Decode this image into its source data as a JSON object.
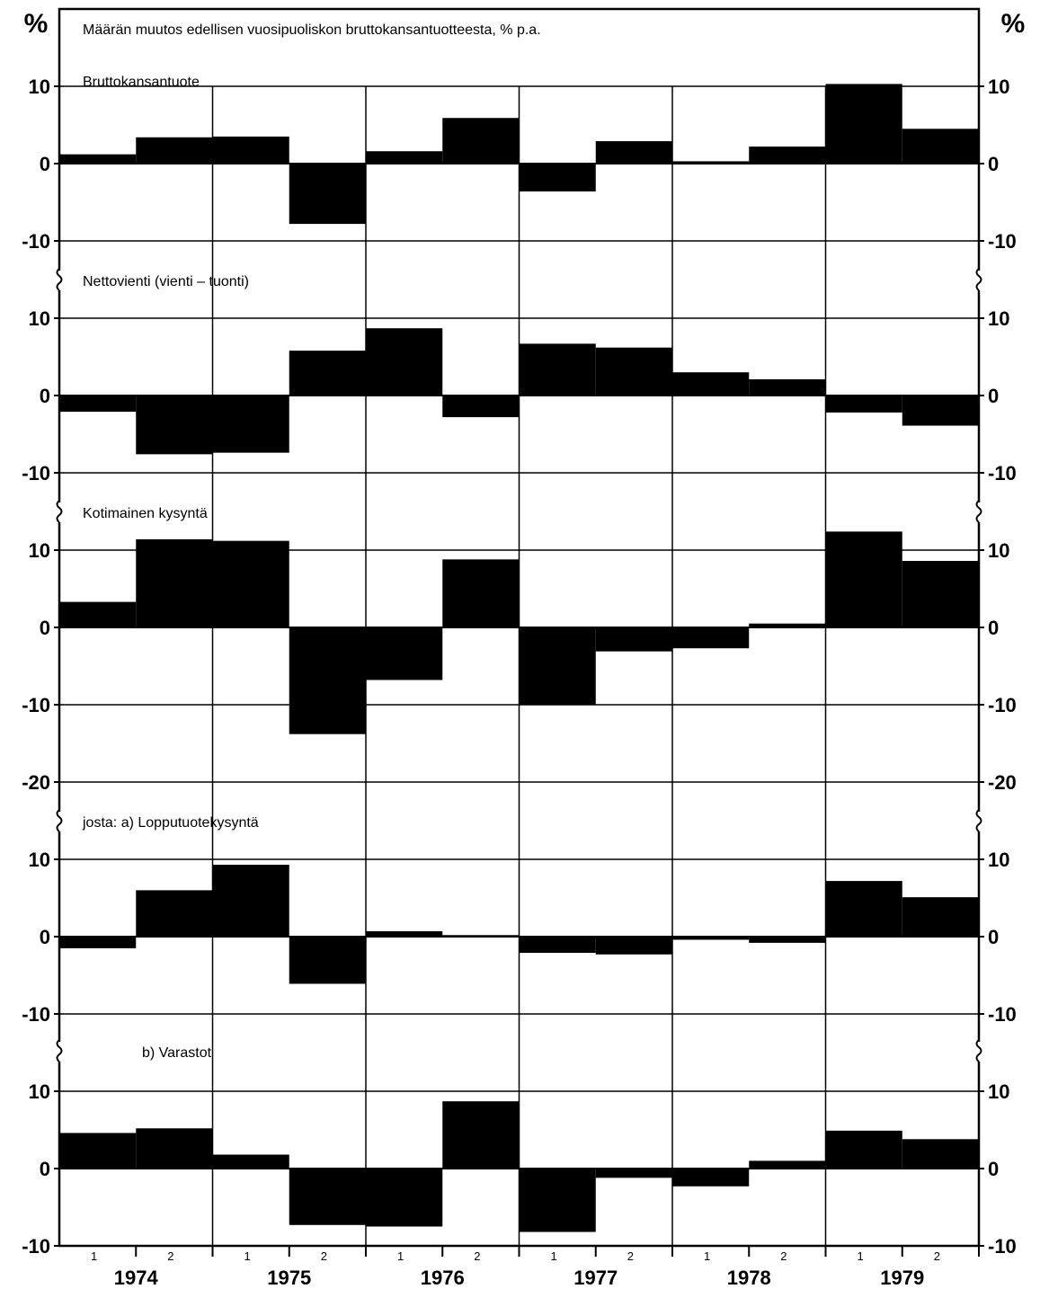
{
  "title": "Määrän muutos edellisen vuosipuoliskon bruttokansantuotteesta, % p.a.",
  "unit": "%",
  "years": [
    "1974",
    "1975",
    "1976",
    "1977",
    "1978",
    "1979"
  ],
  "halves": [
    "1",
    "2"
  ],
  "chart_data": [
    {
      "type": "bar",
      "title": "Bruttokansantuote",
      "ylim": [
        -10,
        10
      ],
      "yticks": [
        "10",
        "0",
        "-10"
      ],
      "categories": [
        "1974/1",
        "1974/2",
        "1975/1",
        "1975/2",
        "1976/1",
        "1976/2",
        "1977/1",
        "1977/2",
        "1978/1",
        "1978/2",
        "1979/1",
        "1979/2"
      ],
      "values": [
        1.2,
        3.4,
        3.5,
        -7.8,
        1.6,
        5.9,
        -3.6,
        2.9,
        0.3,
        2.2,
        10.3,
        4.5
      ]
    },
    {
      "type": "bar",
      "title": "Nettovienti (vienti – tuonti)",
      "ylim": [
        -10,
        10
      ],
      "yticks": [
        "10",
        "0",
        "-10"
      ],
      "categories": [
        "1974/1",
        "1974/2",
        "1975/1",
        "1975/2",
        "1976/1",
        "1976/2",
        "1977/1",
        "1977/2",
        "1978/1",
        "1978/2",
        "1979/1",
        "1979/2"
      ],
      "values": [
        -2.1,
        -7.6,
        -7.4,
        5.8,
        8.7,
        -2.8,
        6.7,
        6.2,
        3.0,
        2.1,
        -2.2,
        -3.9
      ]
    },
    {
      "type": "bar",
      "title": "Kotimainen kysyntä",
      "ylim": [
        -20,
        10
      ],
      "yticks": [
        "10",
        "0",
        "-10",
        "-20"
      ],
      "categories": [
        "1974/1",
        "1974/2",
        "1975/1",
        "1975/2",
        "1976/1",
        "1976/2",
        "1977/1",
        "1977/2",
        "1978/1",
        "1978/2",
        "1979/1",
        "1979/2"
      ],
      "values": [
        3.3,
        11.4,
        11.2,
        -13.8,
        -6.8,
        8.8,
        -10.0,
        -3.1,
        -2.7,
        0.5,
        12.4,
        8.6
      ]
    },
    {
      "type": "bar",
      "title": "josta:  a)  Lopputuotekysyntä",
      "ylim": [
        -10,
        10
      ],
      "yticks": [
        "10",
        "0",
        "-10"
      ],
      "categories": [
        "1974/1",
        "1974/2",
        "1975/1",
        "1975/2",
        "1976/1",
        "1976/2",
        "1977/1",
        "1977/2",
        "1978/1",
        "1978/2",
        "1979/1",
        "1979/2"
      ],
      "values": [
        -1.5,
        6.0,
        9.3,
        -6.1,
        0.7,
        0.2,
        -2.1,
        -2.3,
        -0.4,
        -0.8,
        7.2,
        5.1
      ]
    },
    {
      "type": "bar",
      "title": "b)  Varastot",
      "ylim": [
        -10,
        10
      ],
      "yticks": [
        "10",
        "0",
        "-10"
      ],
      "categories": [
        "1974/1",
        "1974/2",
        "1975/1",
        "1975/2",
        "1976/1",
        "1976/2",
        "1977/1",
        "1977/2",
        "1978/1",
        "1978/2",
        "1979/1",
        "1979/2"
      ],
      "values": [
        4.6,
        5.2,
        1.8,
        -7.3,
        -7.5,
        8.7,
        -8.2,
        -1.2,
        -2.3,
        1.0,
        4.9,
        3.8
      ]
    }
  ]
}
